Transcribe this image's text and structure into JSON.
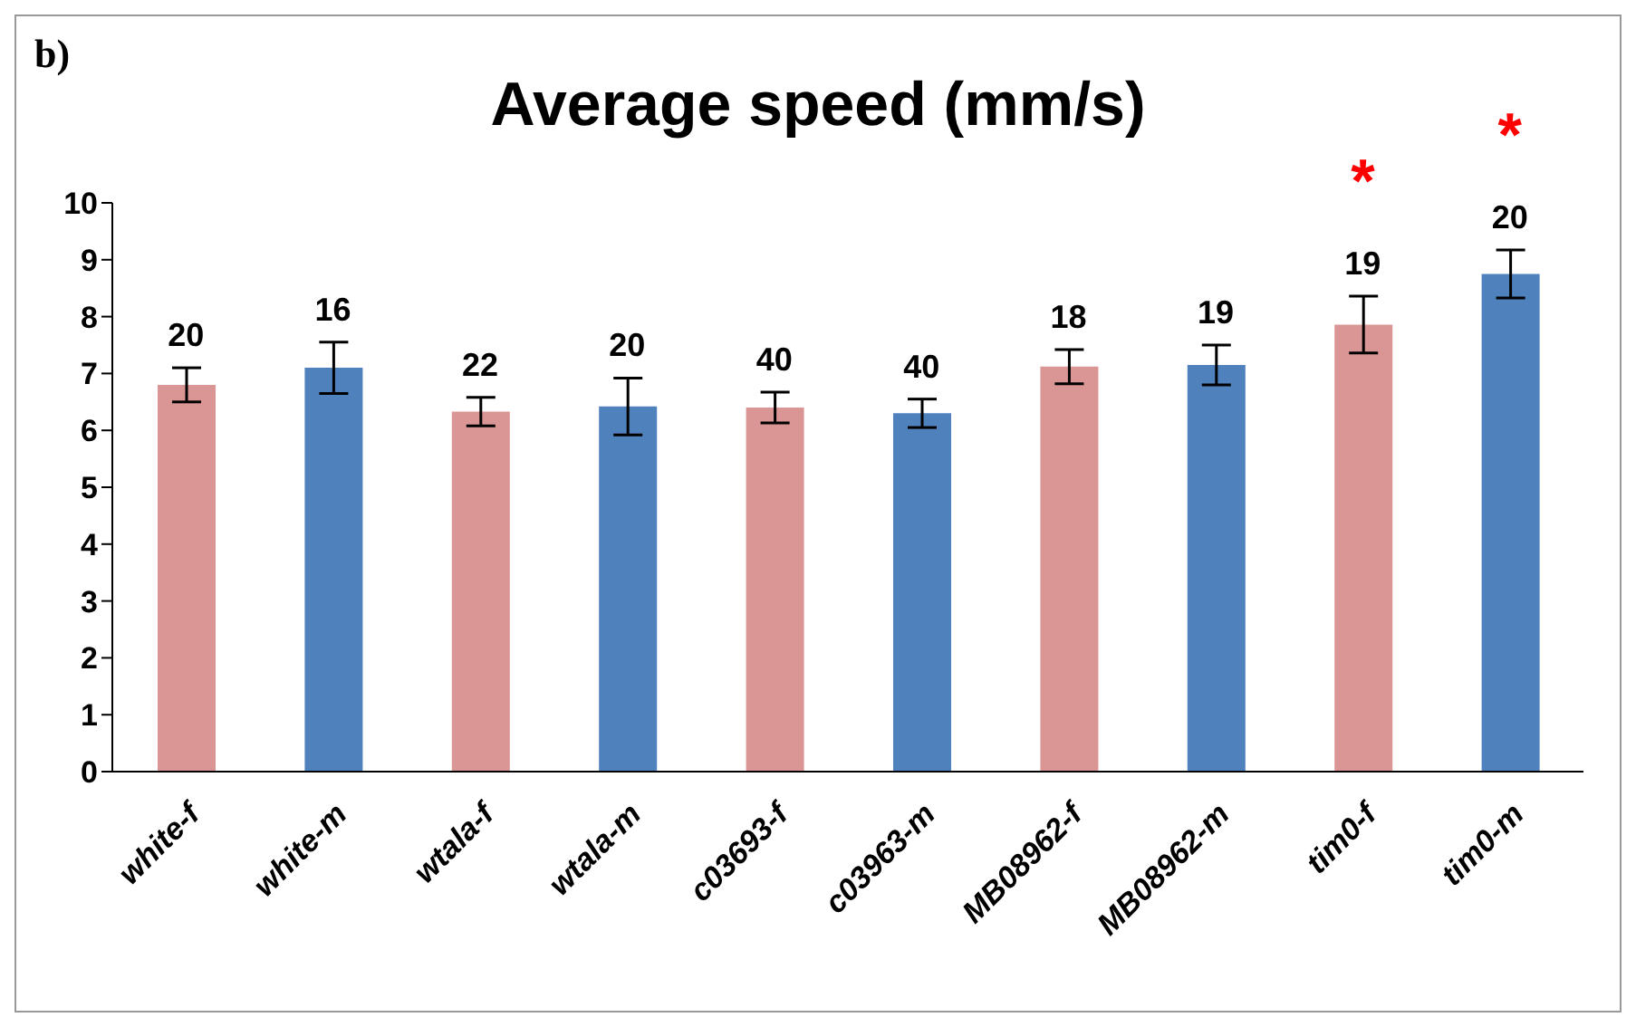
{
  "chart_data": {
    "type": "bar",
    "title": "Average speed (mm/s)",
    "categories": [
      "white-f",
      "white-m",
      "wtala-f",
      "wtala-m",
      "c03693-f",
      "c03963-m",
      "MB08962-f",
      "MB08962-m",
      "tim0-f",
      "tim0-m"
    ],
    "values": [
      6.8,
      7.1,
      6.33,
      6.42,
      6.4,
      6.3,
      7.12,
      7.15,
      7.86,
      8.75
    ],
    "errors": [
      0.3,
      0.45,
      0.25,
      0.5,
      0.27,
      0.25,
      0.3,
      0.35,
      0.5,
      0.42
    ],
    "colors": [
      "#d99694",
      "#4f81bd",
      "#d99694",
      "#4f81bd",
      "#d99694",
      "#4f81bd",
      "#d99694",
      "#4f81bd",
      "#d99694",
      "#4f81bd"
    ],
    "ylim": [
      0,
      10
    ],
    "yticks": [
      0,
      1,
      2,
      3,
      4,
      5,
      6,
      7,
      8,
      9,
      10
    ],
    "grid": false,
    "annotations": [
      "b)",
      {
        "text": "20",
        "x": "white-f",
        "y": 7.1
      },
      {
        "text": "16",
        "x": "white-m",
        "y": 7.55
      },
      {
        "text": "22",
        "x": "wtala-f",
        "y": 6.58
      },
      {
        "text": "20",
        "x": "wtala-m",
        "y": 6.92
      },
      {
        "text": "40",
        "x": "c03693-f",
        "y": 6.67
      },
      {
        "text": "40",
        "x": "c03963-m",
        "y": 6.55
      },
      {
        "text": "18",
        "x": "MB08962-f",
        "y": 7.42
      },
      {
        "text": "19",
        "x": "MB08962-m",
        "y": 7.5
      },
      {
        "text": "19",
        "x": "tim0-f",
        "y": 8.36
      },
      {
        "text": "*",
        "x": "tim0-f",
        "y": 8.36
      },
      {
        "text": "20",
        "x": "tim0-m",
        "y": 9.17
      },
      {
        "text": "*",
        "x": "tim0-m",
        "y": 9.17
      }
    ]
  }
}
